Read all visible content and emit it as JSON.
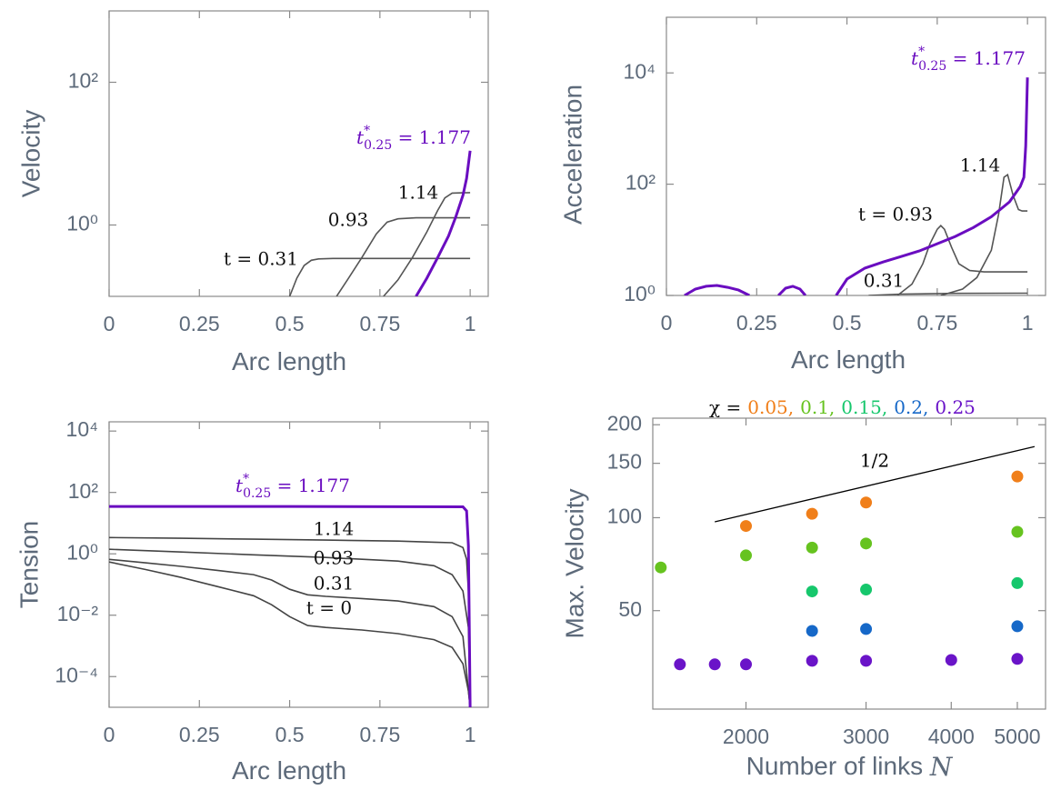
{
  "chart_data": [
    {
      "type": "line",
      "ylabel": "Velocity",
      "xlabel": "Arc length",
      "xlim": [
        0,
        1.05
      ],
      "xticks": [
        0,
        0.25,
        0.5,
        0.75,
        1
      ],
      "ylim": [
        0.1,
        1000
      ],
      "yscale": "log",
      "yticks": [
        {
          "value": 1,
          "label": "10⁰"
        },
        {
          "value": 100,
          "label": "10²"
        }
      ],
      "series": [
        {
          "label": "t = 0.31",
          "color": "#555555",
          "linewidth": 1.6,
          "x": [
            0.5,
            0.52,
            0.54,
            0.56,
            0.58,
            0.62,
            0.7,
            0.85,
            1.0
          ],
          "values": [
            0.1,
            0.18,
            0.27,
            0.32,
            0.335,
            0.34,
            0.34,
            0.34,
            0.34
          ]
        },
        {
          "label": "0.93",
          "color": "#555555",
          "linewidth": 1.6,
          "x": [
            0.63,
            0.66,
            0.7,
            0.74,
            0.77,
            0.8,
            0.85,
            1.0
          ],
          "values": [
            0.1,
            0.17,
            0.35,
            0.75,
            1.1,
            1.22,
            1.26,
            1.26
          ]
        },
        {
          "label": "1.14",
          "color": "#555555",
          "linewidth": 1.6,
          "x": [
            0.76,
            0.8,
            0.84,
            0.88,
            0.91,
            0.93,
            0.95,
            1.0
          ],
          "values": [
            0.1,
            0.17,
            0.35,
            0.8,
            1.6,
            2.4,
            2.8,
            2.84
          ]
        },
        {
          "label": {
            "base": "t",
            "sup": "*",
            "sub": "0.25",
            "rest": " = 1.177"
          },
          "color": "#6a0dc0",
          "linewidth": 3,
          "x": [
            0.85,
            0.88,
            0.91,
            0.94,
            0.96,
            0.98,
            0.99,
            1.0
          ],
          "values": [
            0.1,
            0.18,
            0.35,
            0.7,
            1.3,
            2.6,
            4.5,
            11
          ]
        }
      ]
    },
    {
      "type": "line",
      "ylabel": "Acceleration",
      "xlabel": "Arc length",
      "xlim": [
        0,
        1.05
      ],
      "xticks": [
        0,
        0.25,
        0.5,
        0.75,
        1
      ],
      "ylim": [
        1,
        100000
      ],
      "yscale": "log",
      "yticks": [
        {
          "value": 1,
          "label": "10⁰"
        },
        {
          "value": 100,
          "label": "10²"
        },
        {
          "value": 10000,
          "label": "10⁴"
        }
      ],
      "series": [
        {
          "label": "0.31",
          "color": "#555555",
          "linewidth": 1.6,
          "x": [
            0.56,
            0.65,
            0.8,
            1.0
          ],
          "values": [
            1.0,
            1.06,
            1.09,
            1.1
          ]
        },
        {
          "label": "t = 0.93",
          "color": "#555555",
          "linewidth": 1.6,
          "x": [
            0.64,
            0.68,
            0.71,
            0.73,
            0.75,
            0.76,
            0.77,
            0.79,
            0.81,
            0.84,
            0.88,
            1.0
          ],
          "values": [
            1,
            1.6,
            3.7,
            8.5,
            15.5,
            18,
            15.5,
            7.3,
            3.7,
            2.8,
            2.65,
            2.65
          ]
        },
        {
          "label": "1.14",
          "color": "#555555",
          "linewidth": 1.6,
          "x": [
            0.76,
            0.82,
            0.86,
            0.9,
            0.92,
            0.935,
            0.945,
            0.96,
            0.975,
            0.985,
            1.0
          ],
          "values": [
            1,
            1.3,
            2.1,
            6.5,
            29,
            133,
            148,
            63,
            35,
            33,
            33
          ]
        },
        {
          "label": {
            "base": "t",
            "sup": "*",
            "sub": "0.25",
            "rest": " = 1.177"
          },
          "color": "#6a0dc0",
          "linewidth": 3,
          "x": [
            0.05,
            0.08,
            0.11,
            0.14,
            0.17,
            0.2,
            0.23,
            0.27,
            0.31,
            0.33,
            0.35,
            0.37,
            0.385,
            0.43,
            0.47,
            0.5,
            0.55,
            0.6,
            0.65,
            0.7,
            0.75,
            0.8,
            0.85,
            0.9,
            0.95,
            0.98,
            0.99,
            0.995,
            1.0
          ],
          "values": [
            1,
            1.3,
            1.46,
            1.51,
            1.4,
            1.25,
            1,
            null,
            1,
            1.35,
            1.46,
            1.3,
            1,
            null,
            1,
            1.97,
            3.1,
            4.0,
            5.0,
            6.3,
            8.5,
            11.5,
            16.6,
            26,
            48,
            91,
            133,
            490,
            8300
          ]
        }
      ]
    },
    {
      "type": "line",
      "ylabel": "Tension",
      "xlabel": "Arc length",
      "xlim": [
        0,
        1.05
      ],
      "xticks": [
        0,
        0.25,
        0.5,
        0.75,
        1
      ],
      "ylim": [
        1e-05,
        20000
      ],
      "yscale": "log",
      "yticks": [
        {
          "value": 0.0001,
          "label": "10⁻⁴"
        },
        {
          "value": 0.01,
          "label": "10⁻²"
        },
        {
          "value": 1,
          "label": "10⁰"
        },
        {
          "value": 100,
          "label": "10²"
        },
        {
          "value": 10000,
          "label": "10⁴"
        }
      ],
      "series": [
        {
          "label": "t = 0",
          "color": "#444444",
          "linewidth": 1.6,
          "x": [
            0,
            0.1,
            0.2,
            0.3,
            0.4,
            0.45,
            0.5,
            0.55,
            0.6,
            0.7,
            0.8,
            0.9,
            0.95,
            0.98,
            0.995,
            1.0
          ],
          "values": [
            0.54,
            0.31,
            0.17,
            0.086,
            0.043,
            0.022,
            0.009,
            0.0046,
            0.004,
            0.0033,
            0.0025,
            0.0016,
            0.00089,
            0.00026,
            3.4e-05,
            1e-05
          ]
        },
        {
          "label": "0.31",
          "color": "#444444",
          "linewidth": 1.6,
          "x": [
            0,
            0.1,
            0.2,
            0.3,
            0.4,
            0.45,
            0.5,
            0.55,
            0.6,
            0.7,
            0.8,
            0.9,
            0.95,
            0.98,
            1.0
          ],
          "values": [
            0.66,
            0.51,
            0.39,
            0.29,
            0.21,
            0.14,
            0.07,
            0.046,
            0.041,
            0.035,
            0.029,
            0.019,
            0.009,
            0.002,
            1e-05
          ]
        },
        {
          "label": "0.93",
          "color": "#444444",
          "linewidth": 1.6,
          "x": [
            0,
            0.2,
            0.4,
            0.6,
            0.8,
            0.9,
            0.95,
            0.98,
            0.995,
            1.0
          ],
          "values": [
            1.41,
            1.15,
            0.93,
            0.76,
            0.58,
            0.41,
            0.21,
            0.061,
            0.004,
            1e-05
          ]
        },
        {
          "label": "1.14",
          "color": "#444444",
          "linewidth": 1.6,
          "x": [
            0,
            0.2,
            0.4,
            0.6,
            0.8,
            0.9,
            0.95,
            0.98,
            0.99,
            0.995,
            1.0
          ],
          "values": [
            3.4,
            3.2,
            3.0,
            2.8,
            2.6,
            2.4,
            2.3,
            1.6,
            0.66,
            0.061,
            1e-05
          ]
        },
        {
          "label": {
            "base": "t",
            "sup": "*",
            "sub": "0.25",
            "rest": " = 1.177"
          },
          "color": "#6a0dc0",
          "linewidth": 3,
          "x": [
            0,
            0.5,
            0.98,
            0.99,
            0.995,
            0.998,
            1.0
          ],
          "values": [
            35,
            35,
            34,
            25,
            1.85,
            0.002,
            1e-05
          ]
        }
      ]
    },
    {
      "type": "scatter",
      "ylabel": "Max. Velocity",
      "xlabel": "Number of links",
      "xlabel_var": "N",
      "legend_title": "χ =",
      "xscale": "log",
      "yscale": "log",
      "xlim": [
        1460,
        5500
      ],
      "xticks": [
        2000,
        3000,
        4000,
        5000
      ],
      "ylim": [
        24,
        210
      ],
      "yticks": [
        50,
        100,
        150,
        200
      ],
      "series": [
        {
          "name": "0.05,",
          "color": "#f07f1a",
          "x": [
            2000,
            2500,
            3000,
            5000
          ],
          "values": [
            94,
            103,
            112,
            136
          ]
        },
        {
          "name": "0.1,",
          "color": "#66c31f",
          "x": [
            1500,
            2000,
            2500,
            3000,
            5000
          ],
          "values": [
            69,
            75.5,
            80,
            82.5,
            90
          ]
        },
        {
          "name": "0.15,",
          "color": "#16c76c",
          "x": [
            2500,
            3000,
            5000
          ],
          "values": [
            57.7,
            58.5,
            61.4
          ]
        },
        {
          "name": "0.2,",
          "color": "#1668c8",
          "x": [
            2500,
            3000,
            5000
          ],
          "values": [
            43,
            43.6,
            44.5
          ]
        },
        {
          "name": "0.25",
          "color": "#6a14c8",
          "x": [
            1600,
            1800,
            2000,
            2500,
            3000,
            4000,
            5000
          ],
          "values": [
            33.5,
            33.5,
            33.5,
            34.4,
            34.4,
            34.6,
            34.9
          ]
        }
      ],
      "reference_line": {
        "label": "1/2",
        "color": "#000000",
        "x": [
          1800,
          5300
        ],
        "values": [
          97,
          170
        ]
      }
    }
  ]
}
